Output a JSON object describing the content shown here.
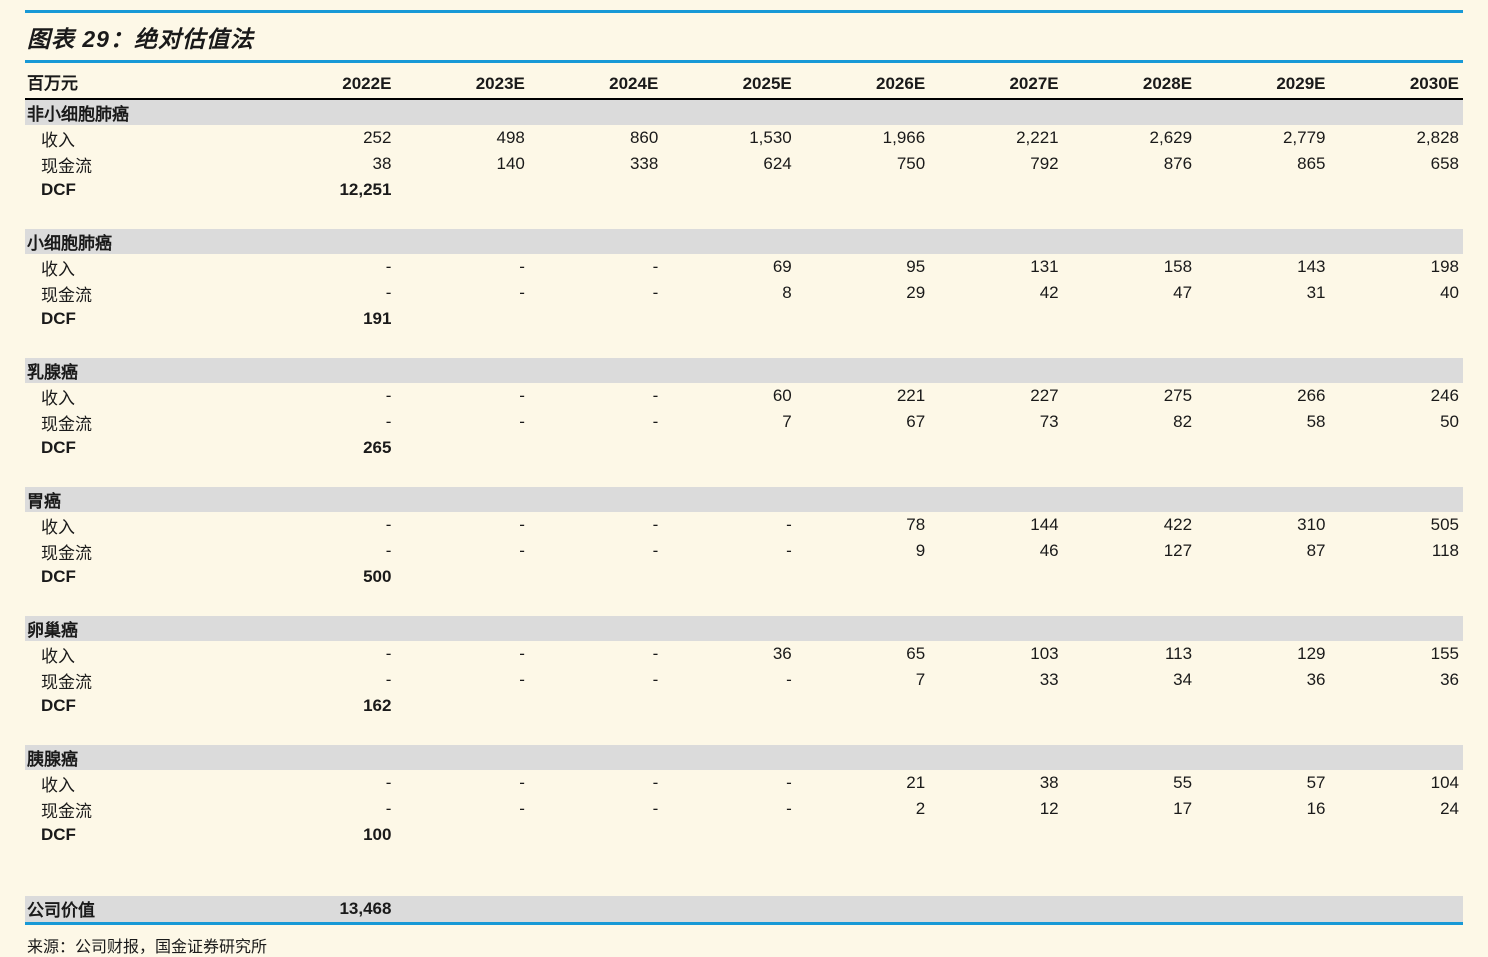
{
  "title": "图表 29：绝对估值法",
  "unit_label": "百万元",
  "years": [
    "2022E",
    "2023E",
    "2024E",
    "2025E",
    "2026E",
    "2027E",
    "2028E",
    "2029E",
    "2030E"
  ],
  "labels": {
    "revenue": "收入",
    "cashflow": "现金流",
    "dcf": "DCF"
  },
  "sections": [
    {
      "name": "非小细胞肺癌",
      "revenue": [
        "252",
        "498",
        "860",
        "1,530",
        "1,966",
        "2,221",
        "2,629",
        "2,779",
        "2,828"
      ],
      "cashflow": [
        "38",
        "140",
        "338",
        "624",
        "750",
        "792",
        "876",
        "865",
        "658"
      ],
      "dcf": "12,251"
    },
    {
      "name": "小细胞肺癌",
      "revenue": [
        "-",
        "-",
        "-",
        "69",
        "95",
        "131",
        "158",
        "143",
        "198"
      ],
      "cashflow": [
        "-",
        "-",
        "-",
        "8",
        "29",
        "42",
        "47",
        "31",
        "40"
      ],
      "dcf": "191"
    },
    {
      "name": "乳腺癌",
      "revenue": [
        "-",
        "-",
        "-",
        "60",
        "221",
        "227",
        "275",
        "266",
        "246"
      ],
      "cashflow": [
        "-",
        "-",
        "-",
        "7",
        "67",
        "73",
        "82",
        "58",
        "50"
      ],
      "dcf": "265"
    },
    {
      "name": "胃癌",
      "revenue": [
        "-",
        "-",
        "-",
        "-",
        "78",
        "144",
        "422",
        "310",
        "505"
      ],
      "cashflow": [
        "-",
        "-",
        "-",
        "-",
        "9",
        "46",
        "127",
        "87",
        "118"
      ],
      "dcf": "500"
    },
    {
      "name": "卵巢癌",
      "revenue": [
        "-",
        "-",
        "-",
        "36",
        "65",
        "103",
        "113",
        "129",
        "155"
      ],
      "cashflow": [
        "-",
        "-",
        "-",
        "-",
        "7",
        "33",
        "34",
        "36",
        "36"
      ],
      "dcf": "162"
    },
    {
      "name": "胰腺癌",
      "revenue": [
        "-",
        "-",
        "-",
        "-",
        "21",
        "38",
        "55",
        "57",
        "104"
      ],
      "cashflow": [
        "-",
        "-",
        "-",
        "-",
        "2",
        "12",
        "17",
        "16",
        "24"
      ],
      "dcf": "100"
    }
  ],
  "total": {
    "label": "公司价值",
    "value": "13,468"
  },
  "source": "来源：公司财报，国金证券研究所",
  "colors": {
    "background": "#FDF8E7",
    "accent_blue": "#1899D6",
    "section_gray": "#DBDBDB",
    "header_underline": "#000000"
  }
}
